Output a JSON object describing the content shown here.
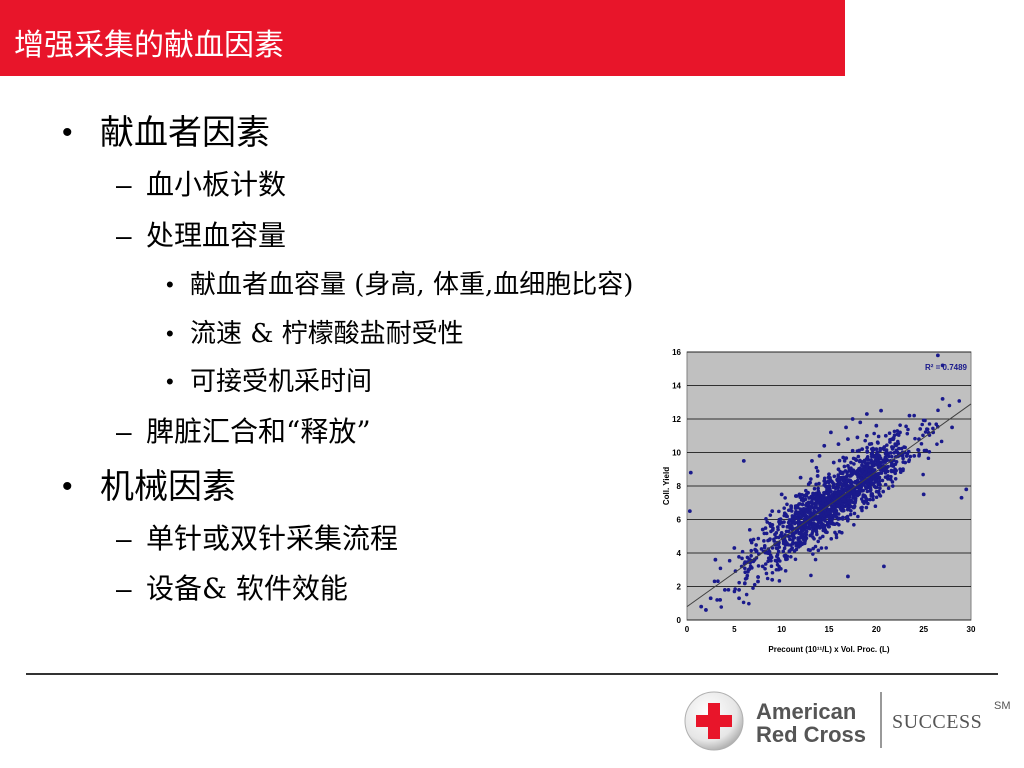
{
  "slide": {
    "title": "增强采集的献血因素",
    "bullets": [
      {
        "level": 1,
        "mark": "•",
        "text": "献血者因素"
      },
      {
        "level": 2,
        "mark": "–",
        "text": "血小板计数"
      },
      {
        "level": 2,
        "mark": "–",
        "text": "处理血容量"
      },
      {
        "level": 3,
        "mark": "•",
        "text": "献血者血容量 (身高, 体重,血细胞比容)"
      },
      {
        "level": 3,
        "mark": "•",
        "text": "流速 & 柠檬酸盐耐受性"
      },
      {
        "level": 3,
        "mark": "•",
        "text": "可接受机采时间"
      },
      {
        "level": 2,
        "mark": "–",
        "text": "脾脏汇合和“释放”"
      },
      {
        "level": 1,
        "mark": "•",
        "text": "机械因素"
      },
      {
        "level": 2,
        "mark": "–",
        "text": "单针或双针采集流程"
      },
      {
        "level": 2,
        "mark": "–",
        "text": "设备& 软件效能"
      }
    ]
  },
  "footer": {
    "logo_line1": "American",
    "logo_line2": "Red Cross",
    "program": "SUCCESS",
    "service_mark": "SM",
    "cross_color": "#e8152a"
  },
  "chart_data": {
    "type": "scatter",
    "xlabel": "Precount (10¹¹/L) x Vol. Proc. (L)",
    "ylabel": "Coll. Yield",
    "xlim": [
      0,
      30
    ],
    "ylim": [
      0,
      16
    ],
    "xticks": [
      "0",
      "5",
      "10",
      "15",
      "20",
      "25",
      "30"
    ],
    "yticks": [
      "0",
      "2",
      "4",
      "6",
      "8",
      "10",
      "12",
      "14",
      "16"
    ],
    "annotation": "R² = 0.7489",
    "grid": "horizontal",
    "point_color": "#1a1a8c",
    "trendline": {
      "x": [
        0,
        30
      ],
      "y": [
        0.8,
        12.9
      ]
    },
    "cluster": {
      "x_center": 15.5,
      "x_spread": 4.2,
      "r_squared": 0.7489
    },
    "points": [
      [
        0.3,
        6.5
      ],
      [
        0.4,
        8.8
      ],
      [
        1.5,
        0.8
      ],
      [
        2,
        0.6
      ],
      [
        2.5,
        1.3
      ],
      [
        3,
        3.6
      ],
      [
        3.5,
        1.2
      ],
      [
        4,
        1.8
      ],
      [
        5,
        4.3
      ],
      [
        5.5,
        1.3
      ],
      [
        5.5,
        1.8
      ],
      [
        6,
        9.5
      ],
      [
        6.3,
        2.5
      ],
      [
        6.5,
        3.0
      ],
      [
        7,
        3.5
      ],
      [
        7.2,
        4.2
      ],
      [
        7.5,
        2.3
      ],
      [
        8,
        5.4
      ],
      [
        8,
        3.2
      ],
      [
        8.5,
        4.0
      ],
      [
        9,
        6.5
      ],
      [
        9,
        2.4
      ],
      [
        9.3,
        4.5
      ],
      [
        9.5,
        3.8
      ],
      [
        10,
        5.2
      ],
      [
        10,
        7.5
      ],
      [
        10.3,
        4.6
      ],
      [
        10.5,
        6.2
      ],
      [
        10.8,
        5.6
      ],
      [
        11,
        6.8
      ],
      [
        11,
        4.2
      ],
      [
        11.3,
        5.9
      ],
      [
        11.5,
        7.4
      ],
      [
        11.8,
        6.3
      ],
      [
        12,
        5.5
      ],
      [
        12,
        8.5
      ],
      [
        12.2,
        6.9
      ],
      [
        12.5,
        7.2
      ],
      [
        12.5,
        4.8
      ],
      [
        12.8,
        6.1
      ],
      [
        13,
        8.2
      ],
      [
        13,
        6.6
      ],
      [
        13.2,
        9.5
      ],
      [
        13.5,
        7.5
      ],
      [
        13.5,
        5.6
      ],
      [
        13.8,
        8.6
      ],
      [
        14,
        7.2
      ],
      [
        14,
        9.8
      ],
      [
        14.2,
        6.8
      ],
      [
        14.5,
        8.3
      ],
      [
        14.5,
        10.4
      ],
      [
        14.8,
        7.8
      ],
      [
        15,
        8.7
      ],
      [
        15,
        6.4
      ],
      [
        15.2,
        11.2
      ],
      [
        15.5,
        8.1
      ],
      [
        15.5,
        9.4
      ],
      [
        15.8,
        7.3
      ],
      [
        16,
        9.0
      ],
      [
        16,
        10.5
      ],
      [
        16.2,
        8.4
      ],
      [
        16.5,
        9.7
      ],
      [
        16.5,
        7.6
      ],
      [
        16.8,
        11.5
      ],
      [
        17,
        9.2
      ],
      [
        17,
        10.8
      ],
      [
        17.2,
        8.6
      ],
      [
        17.5,
        10.1
      ],
      [
        17.5,
        12.0
      ],
      [
        17.8,
        9.6
      ],
      [
        18,
        10.9
      ],
      [
        18,
        8.9
      ],
      [
        18.3,
        11.8
      ],
      [
        18.5,
        10.2
      ],
      [
        18.8,
        9.4
      ],
      [
        19,
        11.0
      ],
      [
        19,
        12.3
      ],
      [
        19.3,
        10.5
      ],
      [
        19.5,
        9.9
      ],
      [
        20,
        11.6
      ],
      [
        20,
        10.2
      ],
      [
        20.5,
        12.5
      ],
      [
        20.8,
        3.2
      ],
      [
        21,
        11.0
      ],
      [
        21.5,
        9.5
      ],
      [
        22,
        10.5
      ],
      [
        22.5,
        11.2
      ],
      [
        23,
        10.0
      ],
      [
        23.5,
        12.2
      ],
      [
        24,
        9.8
      ],
      [
        24.5,
        10.8
      ],
      [
        25,
        7.5
      ],
      [
        26,
        11.2
      ],
      [
        26.5,
        15.8
      ],
      [
        27,
        15.2
      ],
      [
        27,
        13.2
      ],
      [
        28,
        11.5
      ],
      [
        29,
        7.3
      ],
      [
        29.5,
        7.8
      ],
      [
        17,
        2.6
      ]
    ]
  }
}
